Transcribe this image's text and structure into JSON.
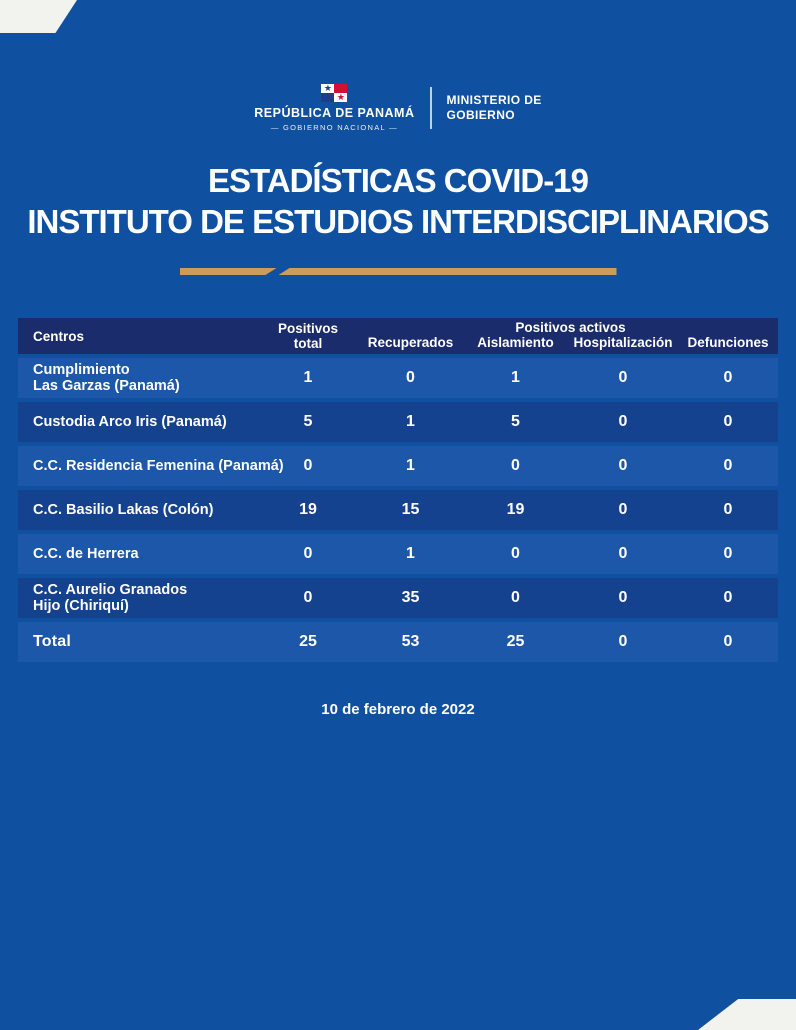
{
  "colors": {
    "page_background": "#0F51A0",
    "table_header_background": "#1B2C6C",
    "row_light": "#1D57A9",
    "row_dark": "#14428F",
    "divider_gold": "#CE9B5B",
    "corner_white": "#F2F2EF",
    "text": "#FFFFFF",
    "flag_red": "#D21034",
    "flag_blue": "#1E3C8C"
  },
  "header": {
    "flag_icon": "panama-flag-icon",
    "republic": "REPÚBLICA DE PANAMÁ",
    "national_government": "—  GOBIERNO NACIONAL  —",
    "ministry_line1": "MINISTERIO DE",
    "ministry_line2": "GOBIERNO"
  },
  "title": {
    "line1": "ESTADÍSTICAS COVID-19",
    "line2": "INSTITUTO DE ESTUDIOS INTERDISCIPLINARIOS"
  },
  "table": {
    "headers": {
      "centros": "Centros",
      "positivos_total": "Positivos\ntotal",
      "recuperados": "Recuperados",
      "positivos_activos": "Positivos activos",
      "aislamiento": "Aislamiento",
      "hospitalizacion": "Hospitalización",
      "defunciones": "Defunciones"
    },
    "rows": [
      {
        "name": "Cumplimiento\nLas Garzas (Panamá)",
        "values": [
          "1",
          "0",
          "1",
          "0",
          "0"
        ]
      },
      {
        "name": "Custodia Arco Iris (Panamá)",
        "values": [
          "5",
          "1",
          "5",
          "0",
          "0"
        ]
      },
      {
        "name": "C.C. Residencia Femenina (Panamá)",
        "values": [
          "0",
          "1",
          "0",
          "0",
          "0"
        ]
      },
      {
        "name": "C.C. Basilio Lakas (Colón)",
        "values": [
          "19",
          "15",
          "19",
          "0",
          "0"
        ]
      },
      {
        "name": "C.C. de Herrera",
        "values": [
          "0",
          "1",
          "0",
          "0",
          "0"
        ]
      },
      {
        "name": "C.C. Aurelio Granados\nHijo (Chiriquí)",
        "values": [
          "0",
          "35",
          "0",
          "0",
          "0"
        ]
      }
    ],
    "total_row": {
      "name": "Total",
      "values": [
        "25",
        "53",
        "25",
        "0",
        "0"
      ]
    }
  },
  "footer": {
    "date": "10 de febrero de 2022"
  },
  "chart_data": {
    "type": "table",
    "title": "ESTADÍSTICAS COVID-19 — INSTITUTO DE ESTUDIOS INTERDISCIPLINARIOS",
    "date": "10 de febrero de 2022",
    "columns": [
      "Centros",
      "Positivos total",
      "Recuperados",
      "Positivos activos: Aislamiento",
      "Positivos activos: Hospitalización",
      "Defunciones"
    ],
    "rows": [
      [
        "Cumplimiento Las Garzas (Panamá)",
        1,
        0,
        1,
        0,
        0
      ],
      [
        "Custodia Arco Iris (Panamá)",
        5,
        1,
        5,
        0,
        0
      ],
      [
        "C.C. Residencia Femenina (Panamá)",
        0,
        1,
        0,
        0,
        0
      ],
      [
        "C.C. Basilio Lakas (Colón)",
        19,
        15,
        19,
        0,
        0
      ],
      [
        "C.C. de Herrera",
        0,
        1,
        0,
        0,
        0
      ],
      [
        "C.C. Aurelio Granados Hijo (Chiriquí)",
        0,
        35,
        0,
        0,
        0
      ],
      [
        "Total",
        25,
        53,
        25,
        0,
        0
      ]
    ]
  }
}
